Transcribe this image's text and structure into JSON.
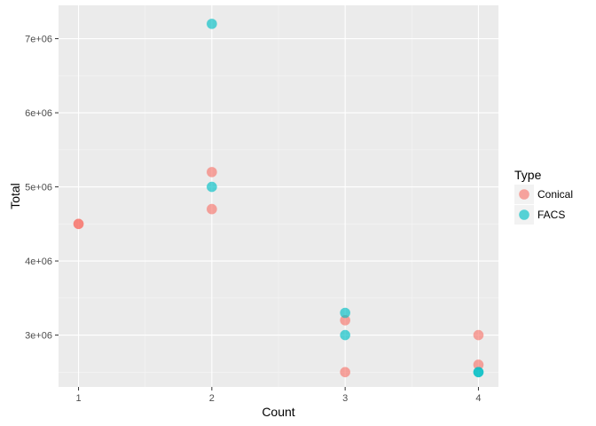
{
  "chart_data": {
    "type": "scatter",
    "xlabel": "Count",
    "ylabel": "Total",
    "xlim": [
      0.85,
      4.15
    ],
    "ylim": [
      2300000,
      7450000
    ],
    "x_ticks": [
      1,
      2,
      3,
      4
    ],
    "x_tick_labels": [
      "1",
      "2",
      "3",
      "4"
    ],
    "y_ticks": [
      3000000,
      4000000,
      5000000,
      6000000,
      7000000
    ],
    "y_tick_labels": [
      "3e+06",
      "4e+06",
      "5e+06",
      "6e+06",
      "7e+06"
    ],
    "grid": true,
    "legend": {
      "title": "Type",
      "position": "right"
    },
    "series": [
      {
        "name": "Conical",
        "color": "#F8766D",
        "points": [
          {
            "x": 1,
            "y": 4500000
          },
          {
            "x": 1,
            "y": 4500000
          },
          {
            "x": 2,
            "y": 5200000
          },
          {
            "x": 2,
            "y": 4700000
          },
          {
            "x": 3,
            "y": 3200000
          },
          {
            "x": 3,
            "y": 2500000
          },
          {
            "x": 4,
            "y": 3000000
          },
          {
            "x": 4,
            "y": 2600000
          }
        ]
      },
      {
        "name": "FACS",
        "color": "#00BFC4",
        "points": [
          {
            "x": 2,
            "y": 7200000
          },
          {
            "x": 2,
            "y": 5000000
          },
          {
            "x": 3,
            "y": 3300000
          },
          {
            "x": 3,
            "y": 3000000
          },
          {
            "x": 4,
            "y": 2500000
          },
          {
            "x": 4,
            "y": 2500000
          }
        ]
      }
    ]
  }
}
